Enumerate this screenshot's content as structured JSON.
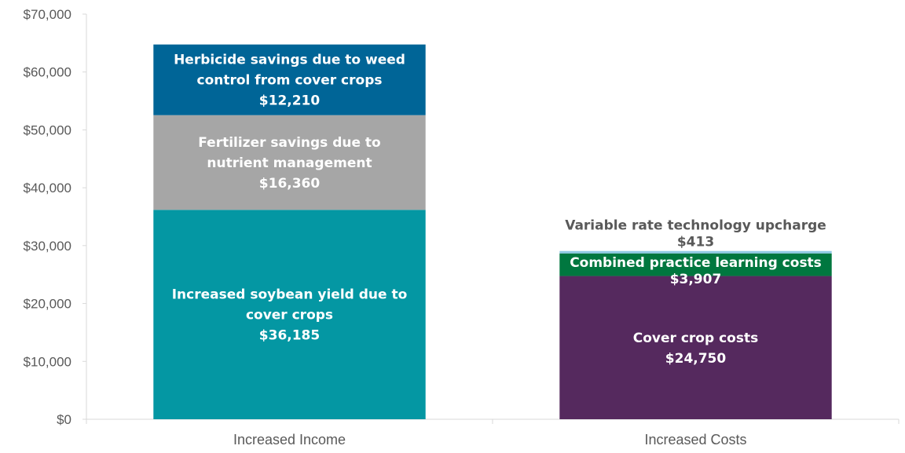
{
  "chart_data": {
    "type": "bar",
    "stacked": true,
    "categories": [
      "Increased Income",
      "Increased Costs"
    ],
    "y_ticks": [
      "$0",
      "$10,000",
      "$20,000",
      "$30,000",
      "$40,000",
      "$50,000",
      "$60,000",
      "$70,000"
    ],
    "ylim": [
      0,
      70000
    ],
    "grid": false,
    "stacks": [
      {
        "category": "Increased Income",
        "segments": [
          {
            "label": [
              "Increased soybean yield due to",
              "cover crops"
            ],
            "value_label": "$36,185",
            "value": 36185,
            "color": "#0497A3",
            "text_color": "#ffffff",
            "label_position": "inside"
          },
          {
            "label": [
              "Fertilizer savings due to",
              "nutrient management"
            ],
            "value_label": "$16,360",
            "value": 16360,
            "color": "#A6A6A6",
            "text_color": "#ffffff",
            "label_position": "inside"
          },
          {
            "label": [
              "Herbicide savings due to weed",
              "control from cover crops"
            ],
            "value_label": "$12,210",
            "value": 12210,
            "color": "#006597",
            "text_color": "#ffffff",
            "label_position": "inside"
          }
        ]
      },
      {
        "category": "Increased Costs",
        "segments": [
          {
            "label": [
              "Cover crop costs"
            ],
            "value_label": "$24,750",
            "value": 24750,
            "color": "#55295E",
            "text_color": "#ffffff",
            "label_position": "inside"
          },
          {
            "label": [
              "Combined practice learning costs"
            ],
            "value_label": "$3,907",
            "value": 3907,
            "color": "#00773F",
            "text_color": "#ffffff",
            "label_position": "inside-straddle"
          },
          {
            "label": [
              "Variable rate technology upcharge"
            ],
            "value_label": "$413",
            "value": 413,
            "color": "#8FC9E4",
            "text_color": "#595959",
            "label_position": "above"
          }
        ]
      }
    ]
  }
}
